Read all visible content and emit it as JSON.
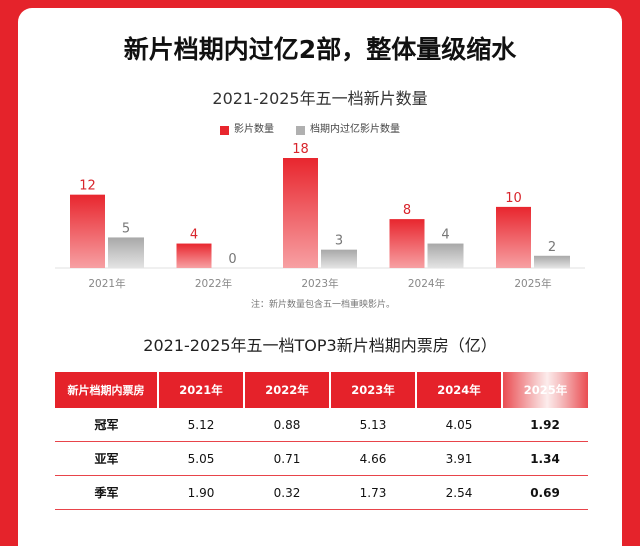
{
  "page": {
    "title": "新片档期内过亿2部，整体量级缩水"
  },
  "colors": {
    "frame": "#e5232b",
    "header": "#e5222a",
    "value_red": "#d8252c"
  },
  "chart_data": [
    {
      "type": "bar",
      "title": "2021-2025年五一档新片数量",
      "categories": [
        "2021年",
        "2022年",
        "2023年",
        "2024年",
        "2025年"
      ],
      "series": [
        {
          "name": "影片数量",
          "color": "#e8262e",
          "values": [
            12,
            4,
            18,
            8,
            10
          ]
        },
        {
          "name": "档期内过亿影片数量",
          "color": "#b0b0b0",
          "values": [
            5,
            0,
            3,
            4,
            2
          ]
        }
      ],
      "legend_position": "top",
      "grid": false,
      "note": "注：新片数量包含五一档重映影片。"
    },
    {
      "type": "table",
      "title": "2021-2025年五一档TOP3新片档期内票房（亿）",
      "columns": [
        "新片档期内票房",
        "2021年",
        "2022年",
        "2023年",
        "2024年",
        "2025年"
      ],
      "rows": [
        [
          "冠军",
          "5.12",
          "0.88",
          "5.13",
          "4.05",
          "1.92"
        ],
        [
          "亚军",
          "5.05",
          "0.71",
          "4.66",
          "3.91",
          "1.34"
        ],
        [
          "季军",
          "1.90",
          "0.32",
          "1.73",
          "2.54",
          "0.69"
        ]
      ]
    }
  ]
}
